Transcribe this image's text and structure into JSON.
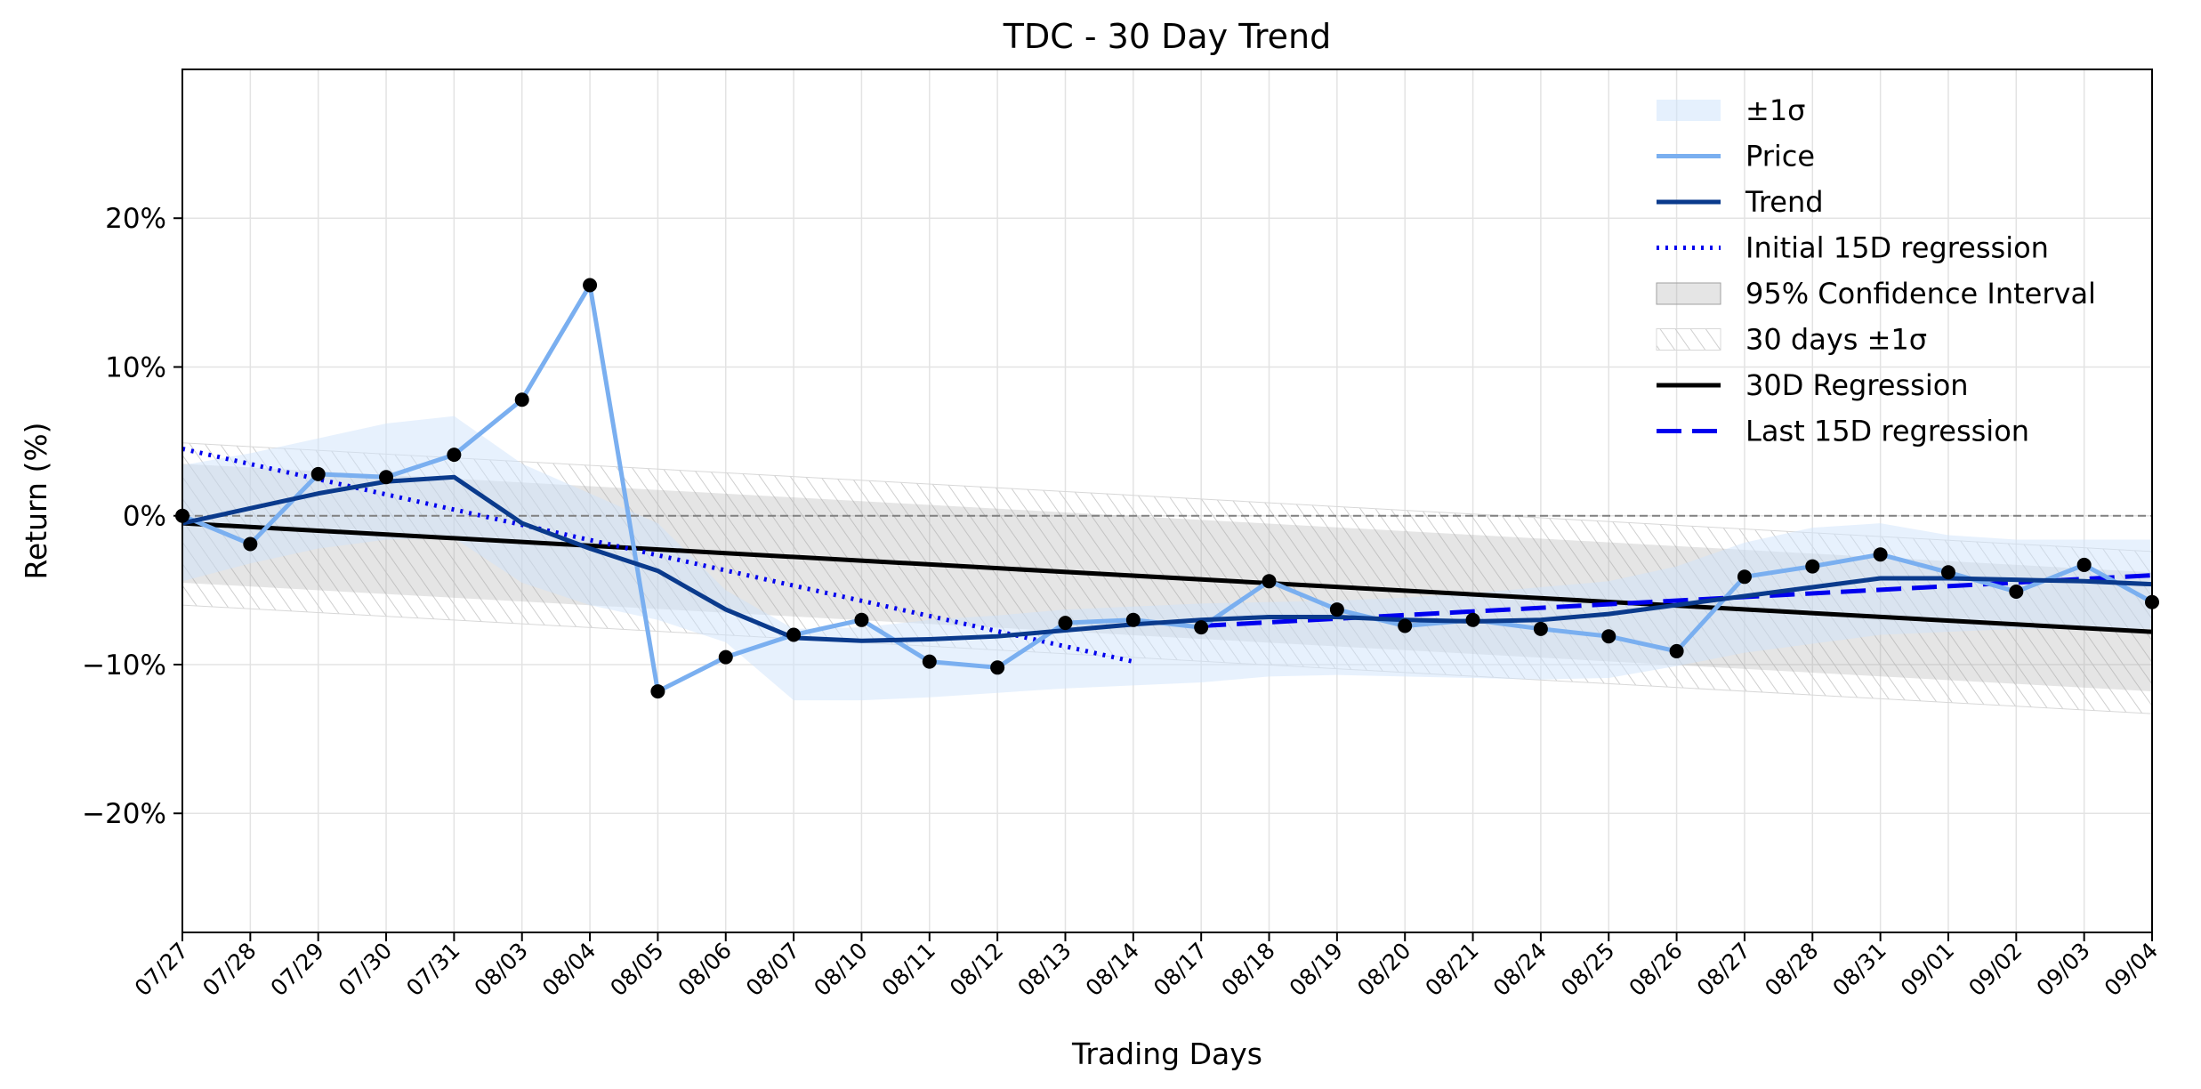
{
  "chart_data": {
    "type": "line",
    "title": "TDC - 30 Day Trend",
    "xlabel": "Trading Days",
    "ylabel": "Return (%)",
    "ylim": [
      -28,
      30
    ],
    "yticks": [
      -20,
      -10,
      0,
      10,
      20
    ],
    "ytick_labels": [
      "−20%",
      "−10%",
      "0%",
      "10%",
      "20%"
    ],
    "grid": true,
    "legend_position": "top-right",
    "categories": [
      "07/27",
      "07/28",
      "07/29",
      "07/30",
      "07/31",
      "08/03",
      "08/04",
      "08/05",
      "08/06",
      "08/07",
      "08/10",
      "08/11",
      "08/12",
      "08/13",
      "08/14",
      "08/17",
      "08/18",
      "08/19",
      "08/20",
      "08/21",
      "08/24",
      "08/25",
      "08/26",
      "08/27",
      "08/28",
      "08/31",
      "09/01",
      "09/02",
      "09/03",
      "09/04"
    ],
    "series": [
      {
        "name": "Price",
        "color": "#7aaff0",
        "values": [
          0,
          -1.9,
          2.8,
          2.6,
          4.1,
          7.8,
          15.5,
          -11.8,
          -9.5,
          -8.0,
          -7.0,
          -9.8,
          -10.2,
          -7.2,
          -7.0,
          -7.5,
          -4.4,
          -6.3,
          -7.4,
          -7.0,
          -7.6,
          -8.1,
          -9.1,
          -4.1,
          -3.4,
          -2.6,
          -3.8,
          -5.1,
          -3.3,
          -5.8
        ]
      },
      {
        "name": "Trend",
        "color": "#0a3a8c",
        "values": [
          -0.5,
          0.5,
          1.5,
          2.3,
          2.6,
          -0.5,
          -2.2,
          -3.7,
          -6.3,
          -8.2,
          -8.4,
          -8.3,
          -8.1,
          -7.7,
          -7.3,
          -7.0,
          -6.8,
          -6.8,
          -7.0,
          -7.1,
          -7.0,
          -6.6,
          -6.0,
          -5.4,
          -4.8,
          -4.2,
          -4.2,
          -4.3,
          -4.4,
          -4.6
        ]
      },
      {
        "name": "Initial 15D regression",
        "color": "#0000ee",
        "style": "dotted",
        "x_range": [
          "07/27",
          "08/14"
        ],
        "start": 4.5,
        "end": -9.8
      },
      {
        "name": "30D Regression",
        "color": "#000000",
        "style": "solid",
        "x_range": [
          "07/27",
          "09/04"
        ],
        "start": -0.5,
        "end": -7.8
      },
      {
        "name": "Last 15D regression",
        "color": "#0000ee",
        "style": "dashed",
        "x_range": [
          "08/17",
          "09/04"
        ],
        "start": -7.4,
        "end": -4.0
      }
    ],
    "bands": {
      "sigma_upper": [
        3.4,
        4.2,
        5.2,
        6.2,
        6.7,
        3.5,
        1.5,
        -0.5,
        -5.0,
        -7.6,
        -7.5,
        -7.0,
        -6.7,
        -6.3,
        -6.1,
        -5.9,
        -5.8,
        -5.7,
        -5.5,
        -5.2,
        -4.8,
        -4.4,
        -3.4,
        -1.8,
        -0.8,
        -0.5,
        -1.3,
        -1.6,
        -1.6,
        -1.6
      ],
      "sigma_lower": [
        -4.4,
        -3.2,
        -2.2,
        -1.6,
        -1.5,
        -4.5,
        -6.0,
        -7.0,
        -8.5,
        -12.4,
        -12.4,
        -12.2,
        -11.9,
        -11.6,
        -11.4,
        -11.2,
        -10.8,
        -10.7,
        -10.8,
        -10.9,
        -11.0,
        -10.9,
        -10.1,
        -9.2,
        -8.6,
        -8.0,
        -7.8,
        -7.6,
        -7.6,
        -7.6
      ],
      "sigma_label": "±1σ",
      "ci_label": "95% Confidence Interval",
      "ci_start": [
        3.5,
        -4.5
      ],
      "ci_end": [
        -3.8,
        -11.8
      ],
      "sigma30_label": "30 days ±1σ",
      "sigma30_start": [
        4.9,
        -6.0
      ],
      "sigma30_end": [
        -2.4,
        -13.3
      ]
    },
    "zero_line": 0,
    "marker_color": "#000000"
  }
}
